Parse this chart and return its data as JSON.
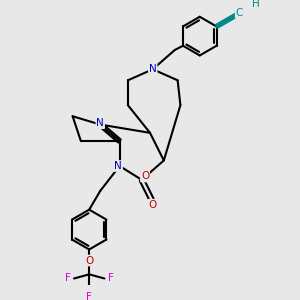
{
  "bg_color": "#e8e8e8",
  "bond_color": "#000000",
  "N_color": "#0000bb",
  "O_color": "#cc0000",
  "F_color": "#dd00dd",
  "alkyne_color": "#008888",
  "line_width": 1.5,
  "figsize": [
    3.0,
    3.0
  ],
  "dpi": 100,
  "xlim": [
    0,
    10
  ],
  "ylim": [
    0,
    10
  ]
}
